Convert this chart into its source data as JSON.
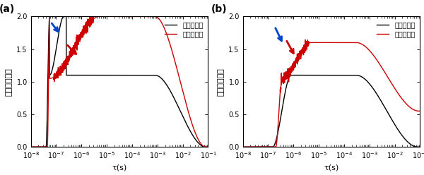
{
  "xlim": [
    1e-08,
    0.1
  ],
  "ylim": [
    0.0,
    2.0
  ],
  "yticks": [
    0.0,
    0.5,
    1.0,
    1.5,
    2.0
  ],
  "xlabel": "τ(s)",
  "ylabel": "自己相関関数",
  "legend_no": "検光子なし",
  "legend_yes": "検光子あり",
  "panel_a_label": "(a)",
  "panel_b_label": "(b)",
  "color_black": "#000000",
  "color_red": "#cc0000",
  "color_blue": "#0044cc",
  "line_width": 1.0,
  "font_size": 8,
  "tick_label_size": 7,
  "arrow_lw": 2.0
}
